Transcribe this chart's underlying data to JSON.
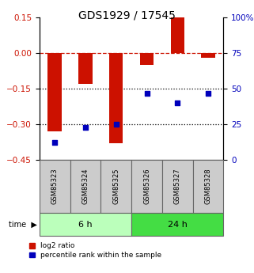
{
  "title": "GDS1929 / 17545",
  "samples": [
    "GSM85323",
    "GSM85324",
    "GSM85325",
    "GSM85326",
    "GSM85327",
    "GSM85328"
  ],
  "log2_ratio": [
    -0.33,
    -0.13,
    -0.38,
    -0.05,
    0.15,
    -0.02
  ],
  "percentile_rank": [
    12,
    23,
    25,
    47,
    40,
    47
  ],
  "groups": [
    {
      "label": "6 h",
      "color": "#bbffbb",
      "samples": [
        0,
        1,
        2
      ]
    },
    {
      "label": "24 h",
      "color": "#44dd44",
      "samples": [
        3,
        4,
        5
      ]
    }
  ],
  "ylim_left": [
    -0.45,
    0.15
  ],
  "ylim_right": [
    0,
    100
  ],
  "yticks_left": [
    0.15,
    0.0,
    -0.15,
    -0.3,
    -0.45
  ],
  "yticks_right": [
    100,
    75,
    50,
    25,
    0
  ],
  "bar_color": "#cc1100",
  "dot_color": "#0000bb",
  "dotted_lines": [
    -0.15,
    -0.3
  ],
  "legend_bar_label": "log2 ratio",
  "legend_dot_label": "percentile rank within the sample",
  "bar_width": 0.45,
  "dot_size": 22
}
